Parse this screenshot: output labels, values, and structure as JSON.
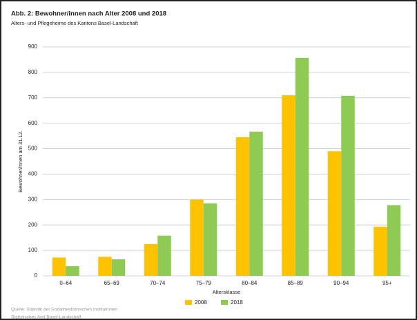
{
  "chart_data": {
    "type": "bar",
    "title": "Abb. 2: Bewohner/innen nach Alter 2008 und 2018",
    "subtitle": "Alters- und Pflegeheime des Kantons Basel-Landschaft",
    "y_label": "Bewohner/innen am 31.12.",
    "x_label": "Altersklasse",
    "categories": [
      "0–64",
      "65–69",
      "70–74",
      "75–79",
      "80–84",
      "85–89",
      "90–94",
      "95+"
    ],
    "series": [
      {
        "name": "2008",
        "color": "#fdc300",
        "values": [
          72,
          75,
          125,
          300,
          545,
          710,
          490,
          193
        ]
      },
      {
        "name": "2018",
        "color": "#8fcb54",
        "values": [
          38,
          65,
          158,
          285,
          567,
          857,
          708,
          278
        ]
      }
    ],
    "ylim": [
      0,
      900
    ],
    "yticks": [
      0,
      100,
      200,
      300,
      400,
      500,
      600,
      700,
      800,
      900
    ],
    "grid": true,
    "source": [
      "Quelle: Statistik der Sozialmedizinischen Institutionen",
      "Statistisches Amt Basel-Landschaft"
    ]
  }
}
